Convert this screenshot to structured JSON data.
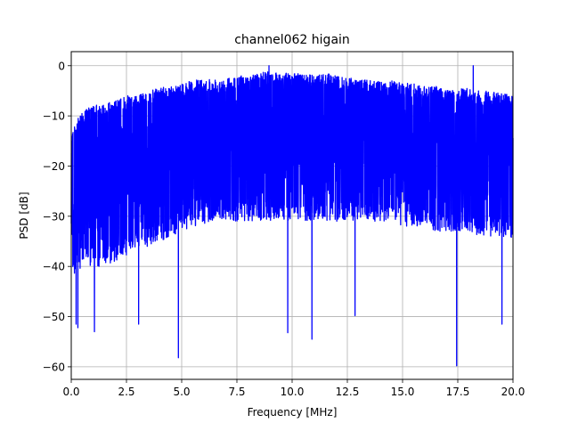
{
  "chart_data": {
    "type": "line",
    "title": "channel062 higain",
    "xlabel": "Frequency [MHz]",
    "ylabel": "PSD [dB]",
    "xlim": [
      0,
      20
    ],
    "ylim": [
      -62.5,
      2.8
    ],
    "xticks": [
      0,
      2.5,
      5,
      7.5,
      10,
      12.5,
      15,
      17.5,
      20
    ],
    "xtick_labels": [
      "0.0",
      "2.5",
      "5.0",
      "7.5",
      "10.0",
      "12.5",
      "15.0",
      "17.5",
      "20.0"
    ],
    "yticks": [
      0,
      -10,
      -20,
      -30,
      -40,
      -50,
      -60
    ],
    "ytick_labels": [
      "0",
      "−10",
      "−20",
      "−30",
      "−40",
      "−50",
      "−60"
    ],
    "grid": true,
    "series": [
      {
        "color": "#0000ff",
        "envelope": {
          "x": [
            0,
            0.5,
            1,
            1.5,
            2,
            2.5,
            3,
            3.5,
            4,
            4.5,
            5,
            5.5,
            6,
            6.5,
            7,
            7.5,
            8,
            8.5,
            9,
            9.5,
            10,
            10.5,
            11,
            11.5,
            12,
            12.5,
            13,
            13.5,
            14,
            14.5,
            15,
            15.5,
            16,
            16.5,
            17,
            17.5,
            18,
            18.5,
            19,
            19.5,
            20
          ],
          "upper": [
            -13,
            -9,
            -8,
            -7.5,
            -7,
            -6,
            -6,
            -5,
            -4.5,
            -4,
            -3.5,
            -3,
            -2.5,
            -2.5,
            -2.5,
            -2,
            -2,
            -1.5,
            -1,
            -1.5,
            -1.5,
            -1.5,
            -2,
            -1.5,
            -2,
            -2.5,
            -2.5,
            -3,
            -3,
            -3,
            -3.5,
            -3.5,
            -4,
            -4,
            -4.5,
            -4.5,
            -4.5,
            -5,
            -5,
            -5.5,
            -6
          ],
          "lower": [
            -42,
            -40,
            -40,
            -40,
            -39,
            -38,
            -36,
            -36,
            -35,
            -34,
            -33,
            -32,
            -32,
            -31,
            -31,
            -31,
            -31,
            -31,
            -31,
            -31,
            -31,
            -31,
            -31,
            -31,
            -31,
            -31,
            -31,
            -31,
            -31,
            -31,
            -32,
            -32,
            -32,
            -33,
            -33,
            -33,
            -33,
            -34,
            -34,
            -34,
            -35
          ]
        },
        "spikes": [
          {
            "x": 0.22,
            "y": -51.5
          },
          {
            "x": 0.3,
            "y": -52.2
          },
          {
            "x": 1.05,
            "y": -53
          },
          {
            "x": 3.05,
            "y": -51.5
          },
          {
            "x": 4.85,
            "y": -58.2
          },
          {
            "x": 9.8,
            "y": -53.2
          },
          {
            "x": 10.9,
            "y": -54.5
          },
          {
            "x": 12.85,
            "y": -49.8
          },
          {
            "x": 17.45,
            "y": -59.8
          },
          {
            "x": 19.5,
            "y": -51.5
          }
        ],
        "peaks": [
          {
            "x": 8.95,
            "y": 0
          },
          {
            "x": 18.2,
            "y": 0
          }
        ]
      }
    ]
  }
}
